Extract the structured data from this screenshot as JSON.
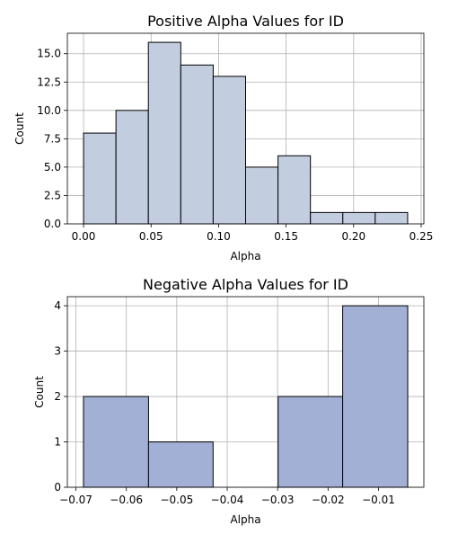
{
  "chart_data": [
    {
      "type": "bar",
      "title": "Positive Alpha Values for ID",
      "xlabel": "Alpha",
      "ylabel": "Count",
      "bin_edges": [
        0.0,
        0.024,
        0.048,
        0.072,
        0.096,
        0.12,
        0.144,
        0.168,
        0.192,
        0.216,
        0.24
      ],
      "values": [
        8,
        10,
        16,
        14,
        13,
        5,
        6,
        1,
        1,
        1
      ],
      "xlim": [
        -0.012,
        0.252
      ],
      "ylim": [
        0,
        16.8
      ],
      "xticks": [
        "0.00",
        "0.05",
        "0.10",
        "0.15",
        "0.20",
        "0.25"
      ],
      "xtick_values": [
        0.0,
        0.05,
        0.1,
        0.15,
        0.2,
        0.25
      ],
      "yticks": [
        "0.0",
        "2.5",
        "5.0",
        "7.5",
        "10.0",
        "12.5",
        "15.0"
      ],
      "ytick_values": [
        0,
        2.5,
        5,
        7.5,
        10,
        12.5,
        15
      ],
      "grid": true,
      "bar_color": "#c3cde0"
    },
    {
      "type": "bar",
      "title": "Negative Alpha Values for ID",
      "xlabel": "Alpha",
      "ylabel": "Count",
      "bin_edges": [
        -0.0685,
        -0.0556,
        -0.0428,
        -0.0299,
        -0.0171,
        -0.0042
      ],
      "values": [
        2,
        1,
        0,
        2,
        4
      ],
      "xlim": [
        -0.0717,
        -0.001
      ],
      "ylim": [
        0,
        4.2
      ],
      "xticks": [
        "−0.07",
        "−0.06",
        "−0.05",
        "−0.04",
        "−0.03",
        "−0.02",
        "−0.01"
      ],
      "xtick_values": [
        -0.07,
        -0.06,
        -0.05,
        -0.04,
        -0.03,
        -0.02,
        -0.01
      ],
      "yticks": [
        "0",
        "1",
        "2",
        "3",
        "4"
      ],
      "ytick_values": [
        0,
        1,
        2,
        3,
        4
      ],
      "grid": true,
      "bar_color": "#a3b0d5"
    }
  ]
}
